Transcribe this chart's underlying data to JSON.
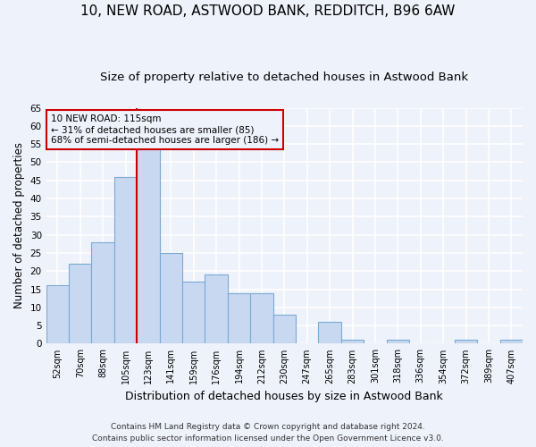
{
  "title1": "10, NEW ROAD, ASTWOOD BANK, REDDITCH, B96 6AW",
  "title2": "Size of property relative to detached houses in Astwood Bank",
  "xlabel": "Distribution of detached houses by size in Astwood Bank",
  "ylabel": "Number of detached properties",
  "footnote1": "Contains HM Land Registry data © Crown copyright and database right 2024.",
  "footnote2": "Contains public sector information licensed under the Open Government Licence v3.0.",
  "bins": [
    "52sqm",
    "70sqm",
    "88sqm",
    "105sqm",
    "123sqm",
    "141sqm",
    "159sqm",
    "176sqm",
    "194sqm",
    "212sqm",
    "230sqm",
    "247sqm",
    "265sqm",
    "283sqm",
    "301sqm",
    "318sqm",
    "336sqm",
    "354sqm",
    "372sqm",
    "389sqm",
    "407sqm"
  ],
  "values": [
    16,
    22,
    28,
    46,
    54,
    25,
    17,
    19,
    14,
    14,
    8,
    0,
    6,
    1,
    0,
    1,
    0,
    0,
    1,
    0,
    1
  ],
  "bar_color": "#c8d8f0",
  "bar_edge_color": "#7aaad4",
  "vline_bin_index": 4,
  "vline_color": "#cc0000",
  "vline_label_title": "10 NEW ROAD: 115sqm",
  "vline_label_line2": "← 31% of detached houses are smaller (85)",
  "vline_label_line3": "68% of semi-detached houses are larger (186) →",
  "annotation_box_edge_color": "#cc0000",
  "ylim": [
    0,
    65
  ],
  "yticks": [
    0,
    5,
    10,
    15,
    20,
    25,
    30,
    35,
    40,
    45,
    50,
    55,
    60,
    65
  ],
  "background_color": "#eef2fb",
  "grid_color": "white",
  "title1_fontsize": 11,
  "title2_fontsize": 9.5,
  "xlabel_fontsize": 9,
  "ylabel_fontsize": 8.5,
  "footnote_fontsize": 6.5
}
